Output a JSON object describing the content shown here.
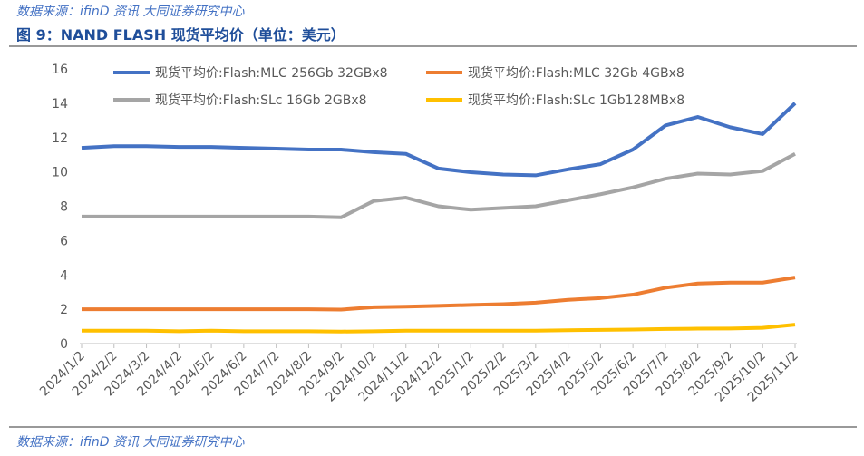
{
  "header_note": "数据来源：ifinD 资讯 大同证券研究中心",
  "footer_note": "数据来源：ifinD 资讯 大同证券研究中心",
  "chart_data": {
    "type": "line",
    "title": "图 9：NAND FLASH 现货平均价（单位：美元）",
    "categories": [
      "2024/1/2",
      "2024/2/2",
      "2024/3/2",
      "2024/4/2",
      "2024/5/2",
      "2024/6/2",
      "2024/7/2",
      "2024/8/2",
      "2024/9/2",
      "2024/10/2",
      "2024/11/2",
      "2024/12/2",
      "2025/1/2",
      "2025/2/2",
      "2025/3/2",
      "2025/4/2",
      "2025/5/2",
      "2025/6/2",
      "2025/7/2",
      "2025/8/2",
      "2025/9/2",
      "2025/10/2",
      "2025/11/2"
    ],
    "series": [
      {
        "name": "现货平均价:Flash:MLC 256Gb 32GBx8",
        "color": "#4472c4",
        "values": [
          11.4,
          11.5,
          11.5,
          11.45,
          11.45,
          11.4,
          11.35,
          11.3,
          11.3,
          11.15,
          11.05,
          10.2,
          9.98,
          9.85,
          9.8,
          10.15,
          10.45,
          11.3,
          12.7,
          13.2,
          12.6,
          12.2,
          14.0
        ]
      },
      {
        "name": "现货平均价:Flash:MLC 32Gb 4GBx8",
        "color": "#ed7d31",
        "values": [
          2.0,
          2.0,
          2.0,
          2.0,
          2.0,
          2.0,
          2.0,
          2.0,
          1.98,
          2.12,
          2.15,
          2.2,
          2.25,
          2.3,
          2.38,
          2.55,
          2.65,
          2.85,
          3.25,
          3.5,
          3.55,
          3.55,
          3.85
        ]
      },
      {
        "name": "现货平均价:Flash:SLc 16Gb 2GBx8",
        "color": "#a5a5a5",
        "values": [
          7.4,
          7.4,
          7.4,
          7.4,
          7.4,
          7.4,
          7.4,
          7.4,
          7.35,
          8.3,
          8.5,
          8.0,
          7.8,
          7.9,
          8.0,
          8.35,
          8.7,
          9.1,
          9.6,
          9.9,
          9.85,
          10.05,
          11.05
        ]
      },
      {
        "name": "现货平均价:Flash:SLc 1Gb128MBx8",
        "color": "#ffc000",
        "values": [
          0.75,
          0.75,
          0.75,
          0.72,
          0.75,
          0.72,
          0.72,
          0.72,
          0.7,
          0.72,
          0.75,
          0.75,
          0.75,
          0.75,
          0.75,
          0.78,
          0.8,
          0.82,
          0.85,
          0.87,
          0.88,
          0.92,
          1.1
        ]
      }
    ],
    "ylim": [
      0,
      16
    ],
    "yticks": [
      0,
      2,
      4,
      6,
      8,
      10,
      12,
      14,
      16
    ],
    "grid": false
  }
}
